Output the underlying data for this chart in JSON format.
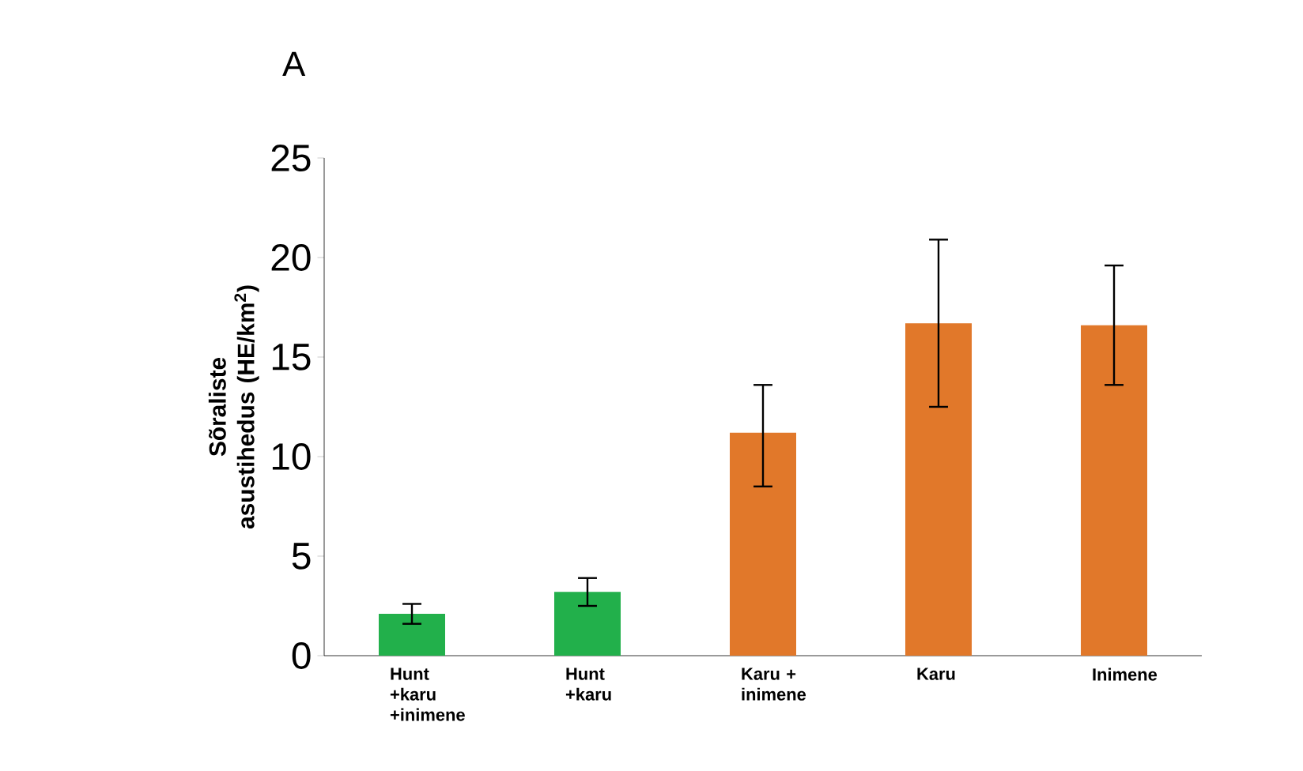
{
  "chart_data": {
    "type": "bar",
    "title": "A",
    "ylabel": "Sõraliste asustihedus (HE/km$^{2}$)",
    "categories": [
      "Hunt +karu +inimene",
      "Hunt +karu",
      "Karu + inimene",
      "Karu",
      "Inimene"
    ],
    "values": [
      2.1,
      3.2,
      11.2,
      16.7,
      16.6
    ],
    "colors": [
      "#22b04b",
      "#22b04b",
      "#e1782a",
      "#e1782a",
      "#e1782a"
    ],
    "errors": [
      [
        1.6,
        2.6
      ],
      [
        2.5,
        3.9
      ],
      [
        8.5,
        13.6
      ],
      [
        12.5,
        20.9
      ],
      [
        13.6,
        19.6
      ]
    ],
    "ylim": [
      0,
      25
    ],
    "yticks": [
      0,
      5,
      10,
      15,
      20,
      25
    ]
  }
}
